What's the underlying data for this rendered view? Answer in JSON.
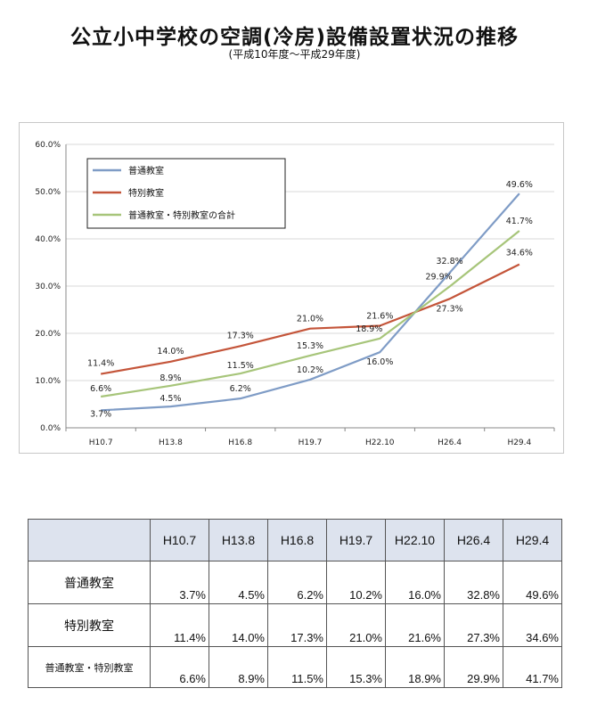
{
  "title": "公立小中学校の空調(冷房)設備設置状況の推移",
  "subtitle": "(平成10年度〜平成29年度)",
  "chart_data": {
    "type": "line",
    "categories": [
      "H10.7",
      "H13.8",
      "H16.8",
      "H19.7",
      "H22.10",
      "H26.4",
      "H29.4"
    ],
    "ylim": [
      0,
      60
    ],
    "yticks": [
      "0.0%",
      "10.0%",
      "20.0%",
      "30.0%",
      "40.0%",
      "50.0%",
      "60.0%"
    ],
    "grid": true,
    "legend_position": "top-left",
    "series": [
      {
        "name": "普通教室",
        "color": "#7f9cc6",
        "values": [
          3.7,
          4.5,
          6.2,
          10.2,
          16.0,
          32.8,
          49.6
        ],
        "labels": [
          "3.7%",
          "4.5%",
          "6.2%",
          "10.2%",
          "16.0%",
          "32.8%",
          "49.6%"
        ]
      },
      {
        "name": "特別教室",
        "color": "#c4553a",
        "values": [
          11.4,
          14.0,
          17.3,
          21.0,
          21.6,
          27.3,
          34.6
        ],
        "labels": [
          "11.4%",
          "14.0%",
          "17.3%",
          "21.0%",
          "21.6%",
          "27.3%",
          "34.6%"
        ]
      },
      {
        "name": "普通教室・特別教室の合計",
        "color": "#a7c57a",
        "values": [
          6.6,
          8.9,
          11.5,
          15.3,
          18.9,
          29.9,
          41.7
        ],
        "labels": [
          "6.6%",
          "8.9%",
          "11.5%",
          "15.3%",
          "18.9%",
          "29.9%",
          "41.7%"
        ]
      }
    ]
  },
  "table": {
    "header_blank": "",
    "headers": [
      "H10.7",
      "H13.8",
      "H16.8",
      "H19.7",
      "H22.10",
      "H26.4",
      "H29.4"
    ],
    "rows": [
      {
        "label": "普通教室",
        "cells": [
          "3.7%",
          "4.5%",
          "6.2%",
          "10.2%",
          "16.0%",
          "32.8%",
          "49.6%"
        ]
      },
      {
        "label": "特別教室",
        "cells": [
          "11.4%",
          "14.0%",
          "17.3%",
          "21.0%",
          "21.6%",
          "27.3%",
          "34.6%"
        ]
      },
      {
        "label": "普通教室・特別教室",
        "cells": [
          "6.6%",
          "8.9%",
          "11.5%",
          "15.3%",
          "18.9%",
          "29.9%",
          "41.7%"
        ]
      }
    ]
  }
}
